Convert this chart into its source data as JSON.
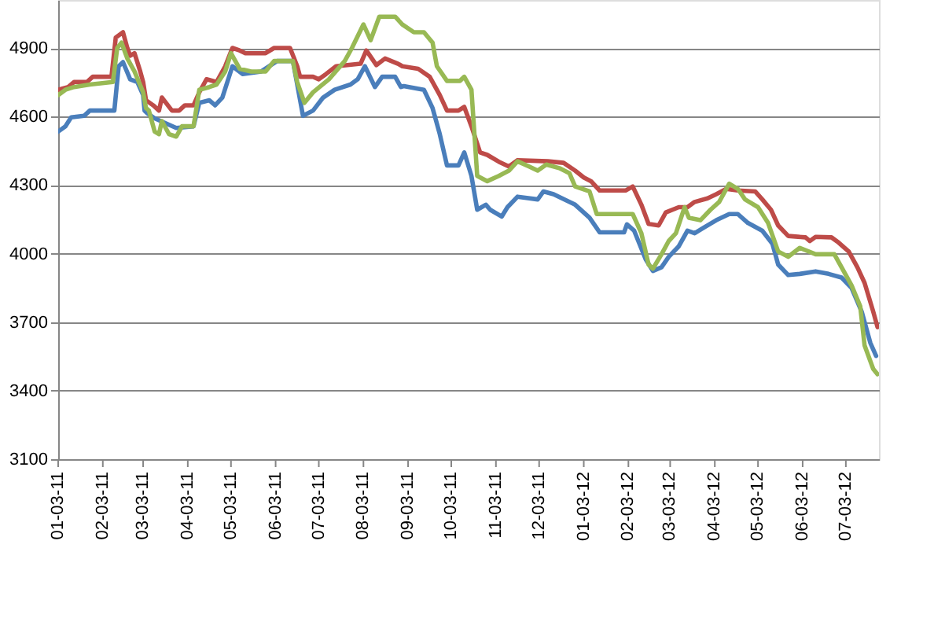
{
  "chart_data": {
    "type": "line",
    "grid": "y",
    "xlim": [
      "2011-01-03",
      "2012-07-26"
    ],
    "ylim": [
      3100,
      5110
    ],
    "yticks": [
      3100,
      3400,
      3700,
      4000,
      4300,
      4600,
      4900
    ],
    "xticks": [
      {
        "value": "2011-01-03",
        "label": "01-03-11"
      },
      {
        "value": "2011-02-03",
        "label": "02-03-11"
      },
      {
        "value": "2011-03-03",
        "label": "03-03-11"
      },
      {
        "value": "2011-04-03",
        "label": "04-03-11"
      },
      {
        "value": "2011-05-03",
        "label": "05-03-11"
      },
      {
        "value": "2011-06-03",
        "label": "06-03-11"
      },
      {
        "value": "2011-07-03",
        "label": "07-03-11"
      },
      {
        "value": "2011-08-03",
        "label": "08-03-11"
      },
      {
        "value": "2011-09-03",
        "label": "09-03-11"
      },
      {
        "value": "2011-10-03",
        "label": "10-03-11"
      },
      {
        "value": "2011-11-03",
        "label": "11-03-11"
      },
      {
        "value": "2011-12-03",
        "label": "12-03-11"
      },
      {
        "value": "2012-01-03",
        "label": "01-03-12"
      },
      {
        "value": "2012-02-03",
        "label": "02-03-12"
      },
      {
        "value": "2012-03-03",
        "label": "03-03-12"
      },
      {
        "value": "2012-04-03",
        "label": "04-03-12"
      },
      {
        "value": "2012-05-03",
        "label": "05-03-12"
      },
      {
        "value": "2012-06-03",
        "label": "06-03-12"
      },
      {
        "value": "2012-07-03",
        "label": "07-03-12"
      }
    ],
    "series": [
      {
        "color": "#4a7ebb",
        "x": [
          "2011-01-03",
          "2011-01-08",
          "2011-01-12",
          "2011-01-21",
          "2011-01-25",
          "2011-02-11",
          "2011-02-14",
          "2011-02-17",
          "2011-02-22",
          "2011-02-27",
          "2011-03-03",
          "2011-03-04",
          "2011-03-06",
          "2011-03-11",
          "2011-03-26",
          "2011-04-07",
          "2011-04-11",
          "2011-04-18",
          "2011-04-22",
          "2011-04-27",
          "2011-05-04",
          "2011-05-11",
          "2011-05-24",
          "2011-06-04",
          "2011-06-15",
          "2011-06-22",
          "2011-06-29",
          "2011-07-06",
          "2011-07-14",
          "2011-07-25",
          "2011-07-30",
          "2011-08-04",
          "2011-08-11",
          "2011-08-16",
          "2011-08-25",
          "2011-08-29",
          "2011-08-31",
          "2011-09-14",
          "2011-09-20",
          "2011-09-25",
          "2011-09-30",
          "2011-10-08",
          "2011-10-12",
          "2011-10-17",
          "2011-10-21",
          "2011-10-27",
          "2011-10-30",
          "2011-11-07",
          "2011-11-11",
          "2011-11-18",
          "2011-12-02",
          "2011-12-06",
          "2011-12-13",
          "2011-12-28",
          "2012-01-07",
          "2012-01-14",
          "2012-01-31",
          "2012-02-02",
          "2012-02-07",
          "2012-02-15",
          "2012-02-20",
          "2012-02-26",
          "2012-03-02",
          "2012-03-09",
          "2012-03-15",
          "2012-03-20",
          "2012-03-26",
          "2012-04-04",
          "2012-04-13",
          "2012-04-19",
          "2012-04-26",
          "2012-05-06",
          "2012-05-13",
          "2012-05-17",
          "2012-05-24",
          "2012-06-01",
          "2012-06-12",
          "2012-06-21",
          "2012-06-30",
          "2012-07-07",
          "2012-07-14",
          "2012-07-20",
          "2012-07-24"
        ],
        "values": [
          4534,
          4557,
          4596,
          4603,
          4626,
          4626,
          4820,
          4838,
          4763,
          4751,
          4694,
          4626,
          4614,
          4592,
          4550,
          4557,
          4660,
          4671,
          4649,
          4683,
          4820,
          4786,
          4797,
          4843,
          4843,
          4603,
          4626,
          4683,
          4717,
          4740,
          4763,
          4820,
          4729,
          4774,
          4774,
          4729,
          4733,
          4717,
          4637,
          4523,
          4386,
          4386,
          4443,
          4340,
          4192,
          4214,
          4192,
          4162,
          4203,
          4249,
          4237,
          4272,
          4260,
          4214,
          4157,
          4093,
          4093,
          4128,
          4100,
          3975,
          3924,
          3940,
          3986,
          4032,
          4100,
          4089,
          4112,
          4146,
          4173,
          4173,
          4134,
          4100,
          4043,
          3952,
          3906,
          3911,
          3922,
          3911,
          3895,
          3849,
          3746,
          3609,
          3552
        ]
      },
      {
        "color": "#be4b48",
        "x": [
          "2011-01-03",
          "2011-01-10",
          "2011-01-14",
          "2011-01-23",
          "2011-01-27",
          "2011-02-09",
          "2011-02-12",
          "2011-02-17",
          "2011-02-20",
          "2011-02-22",
          "2011-02-25",
          "2011-03-01",
          "2011-03-03",
          "2011-03-05",
          "2011-03-10",
          "2011-03-14",
          "2011-03-16",
          "2011-03-23",
          "2011-03-28",
          "2011-04-01",
          "2011-04-07",
          "2011-04-11",
          "2011-04-16",
          "2011-04-23",
          "2011-04-29",
          "2011-05-04",
          "2011-05-09",
          "2011-05-13",
          "2011-05-27",
          "2011-06-02",
          "2011-06-13",
          "2011-06-18",
          "2011-06-20",
          "2011-06-29",
          "2011-07-03",
          "2011-07-08",
          "2011-07-15",
          "2011-08-01",
          "2011-08-05",
          "2011-08-12",
          "2011-08-18",
          "2011-08-27",
          "2011-08-30",
          "2011-09-10",
          "2011-09-18",
          "2011-09-25",
          "2011-09-30",
          "2011-10-08",
          "2011-10-12",
          "2011-10-17",
          "2011-10-23",
          "2011-10-28",
          "2011-11-05",
          "2011-11-12",
          "2011-11-18",
          "2011-12-09",
          "2011-12-20",
          "2011-12-28",
          "2012-01-03",
          "2012-01-08",
          "2012-01-14",
          "2012-02-01",
          "2012-02-06",
          "2012-02-12",
          "2012-02-17",
          "2012-02-24",
          "2012-02-29",
          "2012-03-09",
          "2012-03-15",
          "2012-03-20",
          "2012-03-29",
          "2012-04-04",
          "2012-04-11",
          "2012-04-19",
          "2012-05-01",
          "2012-05-06",
          "2012-05-12",
          "2012-05-17",
          "2012-05-24",
          "2012-06-05",
          "2012-06-08",
          "2012-06-12",
          "2012-06-23",
          "2012-06-28",
          "2012-07-05",
          "2012-07-11",
          "2012-07-16",
          "2012-07-22",
          "2012-07-25"
        ],
        "values": [
          4717,
          4729,
          4751,
          4751,
          4774,
          4774,
          4946,
          4969,
          4900,
          4866,
          4877,
          4797,
          4751,
          4671,
          4649,
          4626,
          4683,
          4626,
          4626,
          4649,
          4649,
          4706,
          4763,
          4751,
          4820,
          4900,
          4889,
          4877,
          4877,
          4900,
          4900,
          4820,
          4774,
          4774,
          4763,
          4786,
          4820,
          4831,
          4889,
          4825,
          4854,
          4831,
          4820,
          4809,
          4774,
          4694,
          4626,
          4626,
          4642,
          4557,
          4443,
          4432,
          4402,
          4381,
          4409,
          4404,
          4397,
          4363,
          4333,
          4317,
          4276,
          4276,
          4294,
          4214,
          4130,
          4123,
          4180,
          4203,
          4203,
          4226,
          4242,
          4260,
          4283,
          4276,
          4272,
          4237,
          4192,
          4123,
          4077,
          4071,
          4055,
          4073,
          4071,
          4048,
          4009,
          3940,
          3872,
          3746,
          3678
        ]
      },
      {
        "color": "#98b954",
        "x": [
          "2011-01-03",
          "2011-01-08",
          "2011-01-14",
          "2011-01-25",
          "2011-02-10",
          "2011-02-13",
          "2011-02-16",
          "2011-02-20",
          "2011-02-25",
          "2011-03-03",
          "2011-03-05",
          "2011-03-07",
          "2011-03-11",
          "2011-03-14",
          "2011-03-16",
          "2011-03-21",
          "2011-03-26",
          "2011-03-30",
          "2011-04-07",
          "2011-04-11",
          "2011-04-18",
          "2011-04-23",
          "2011-04-29",
          "2011-05-03",
          "2011-05-09",
          "2011-05-17",
          "2011-05-27",
          "2011-06-02",
          "2011-06-15",
          "2011-06-18",
          "2011-06-23",
          "2011-06-29",
          "2011-07-10",
          "2011-07-21",
          "2011-07-26",
          "2011-08-03",
          "2011-08-08",
          "2011-08-14",
          "2011-08-25",
          "2011-08-30",
          "2011-09-07",
          "2011-09-14",
          "2011-09-20",
          "2011-09-23",
          "2011-09-30",
          "2011-10-09",
          "2011-10-12",
          "2011-10-17",
          "2011-10-21",
          "2011-10-28",
          "2011-11-05",
          "2011-11-12",
          "2011-11-18",
          "2011-11-26",
          "2011-12-02",
          "2011-12-08",
          "2011-12-17",
          "2011-12-24",
          "2011-12-28",
          "2012-01-07",
          "2012-01-12",
          "2012-02-06",
          "2012-02-12",
          "2012-02-17",
          "2012-02-20",
          "2012-02-26",
          "2012-03-02",
          "2012-03-07",
          "2012-03-13",
          "2012-03-16",
          "2012-03-24",
          "2012-03-31",
          "2012-04-06",
          "2012-04-13",
          "2012-04-19",
          "2012-04-24",
          "2012-05-03",
          "2012-05-10",
          "2012-05-17",
          "2012-05-24",
          "2012-06-01",
          "2012-06-12",
          "2012-06-25",
          "2012-06-30",
          "2012-07-07",
          "2012-07-13",
          "2012-07-16",
          "2012-07-22",
          "2012-07-25"
        ],
        "values": [
          4694,
          4717,
          4729,
          4740,
          4751,
          4900,
          4923,
          4854,
          4797,
          4706,
          4637,
          4626,
          4534,
          4523,
          4580,
          4523,
          4512,
          4557,
          4557,
          4717,
          4729,
          4740,
          4797,
          4877,
          4809,
          4797,
          4797,
          4843,
          4843,
          4751,
          4660,
          4706,
          4763,
          4843,
          4900,
          5003,
          4934,
          5037,
          5037,
          5003,
          4969,
          4969,
          4923,
          4820,
          4756,
          4756,
          4774,
          4717,
          4340,
          4317,
          4340,
          4363,
          4404,
          4381,
          4363,
          4390,
          4374,
          4352,
          4294,
          4272,
          4173,
          4173,
          4089,
          3952,
          3934,
          3997,
          4055,
          4089,
          4203,
          4157,
          4146,
          4192,
          4226,
          4306,
          4283,
          4237,
          4203,
          4134,
          4009,
          3986,
          4025,
          3997,
          3997,
          3940,
          3860,
          3769,
          3598,
          3495,
          3472
        ]
      }
    ]
  }
}
